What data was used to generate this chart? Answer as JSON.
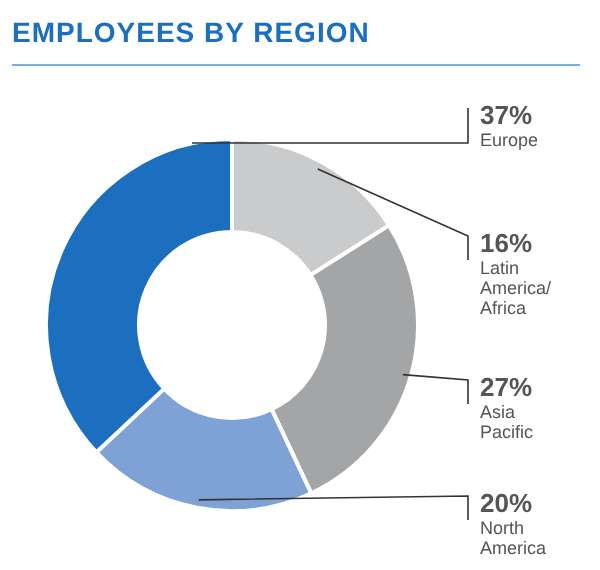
{
  "chart_data": {
    "type": "donut",
    "title": "EMPLOYEES BY REGION",
    "categories": [
      "Latin America/ Africa",
      "Asia Pacific",
      "North America",
      "Europe"
    ],
    "values": [
      16,
      27,
      20,
      37
    ],
    "value_labels": [
      "16%",
      "27%",
      "20%",
      "37%"
    ],
    "colors": [
      "#c9cbcd",
      "#a3a5a7",
      "#7ea2d6",
      "#1c6fbf"
    ],
    "legend": false
  }
}
